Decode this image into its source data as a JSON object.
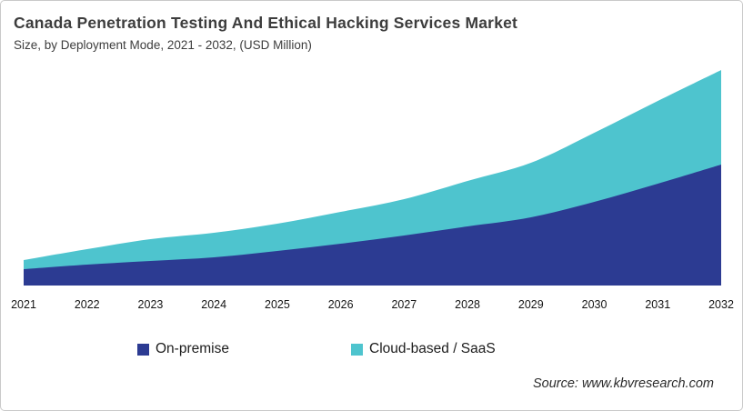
{
  "header": {
    "title": "Canada Penetration Testing And Ethical Hacking Services Market",
    "subtitle": "Size, by Deployment Mode, 2021 - 2032, (USD Million)"
  },
  "chart_data": {
    "type": "area",
    "stacked": true,
    "title": "Canada Penetration Testing And Ethical Hacking Services Market",
    "subtitle": "Size, by Deployment Mode, 2021 - 2032, (USD Million)",
    "xlabel": "",
    "ylabel": "",
    "unit": "USD Million",
    "y_axis_shown": false,
    "grid": false,
    "legend_position": "bottom",
    "categories": [
      "2021",
      "2022",
      "2023",
      "2024",
      "2025",
      "2026",
      "2027",
      "2028",
      "2029",
      "2030",
      "2031",
      "2032"
    ],
    "series": [
      {
        "name": "On-premise",
        "color": "#2c3b92",
        "values": [
          18,
          23,
          27,
          31,
          38,
          46,
          55,
          65,
          75,
          92,
          112,
          133
        ]
      },
      {
        "name": "Cloud-based / SaaS",
        "color": "#4ec4ce",
        "values": [
          10,
          17,
          24,
          27,
          30,
          35,
          40,
          50,
          60,
          76,
          91,
          104
        ]
      }
    ],
    "value_note": "relative heights; chart shows no numeric y-axis"
  },
  "footer": {
    "source": "Source: www.kbvresearch.com"
  },
  "colors": {
    "title_text": "#3d3d3d",
    "axis_text": "#141414",
    "legend_text": "#1c1c1c",
    "source_text": "#2b2b2b",
    "card_border": "#c9c9c9",
    "on_premise": "#2c3b92",
    "cloud_saas": "#4ec4ce"
  }
}
